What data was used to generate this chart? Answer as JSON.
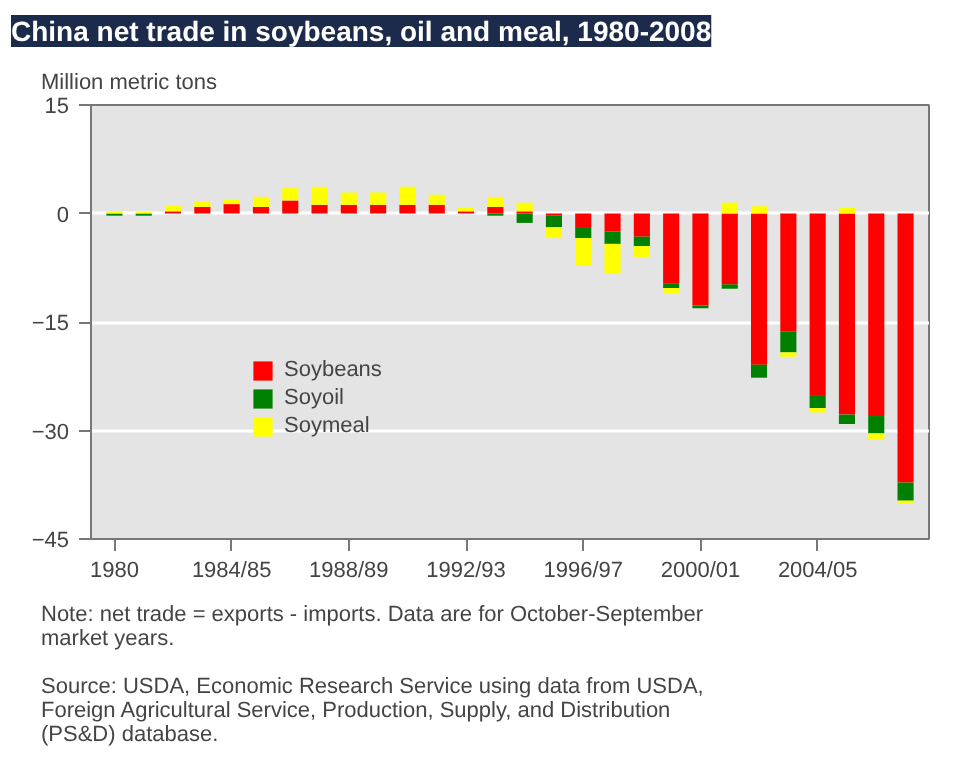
{
  "chart_data": {
    "type": "bar",
    "title": "China net trade in soybeans, oil and meal, 1980-2008",
    "ylabel": "Million metric tons",
    "categories": [
      "1980",
      null,
      null,
      null,
      "1984/85",
      null,
      null,
      null,
      "1988/89",
      null,
      null,
      null,
      "1992/93",
      null,
      null,
      null,
      "1996/97",
      null,
      null,
      null,
      "2000/01",
      null,
      null,
      null,
      "2004/05",
      null,
      null,
      null
    ],
    "series": [
      {
        "name": "Soybeans",
        "color": "#ff0000",
        "values": [
          null,
          null,
          0.3,
          0.9,
          1.3,
          0.9,
          1.8,
          1.2,
          1.2,
          1.2,
          1.2,
          1.2,
          0.3,
          0.9,
          0.3,
          -0.3,
          -2.0,
          -2.5,
          -3.2,
          -9.7,
          -12.7,
          -9.8,
          -20.9,
          -16.3,
          -25.1,
          -27.8,
          -28.0,
          -37.2
        ]
      },
      {
        "name": "Soyoil",
        "color": "#008000",
        "values": [
          -0.3,
          -0.3,
          null,
          null,
          null,
          null,
          null,
          null,
          null,
          null,
          null,
          null,
          null,
          -0.3,
          -1.3,
          -1.6,
          -1.4,
          -1.7,
          -1.3,
          -0.6,
          -0.4,
          -0.6,
          -1.8,
          -2.9,
          -1.8,
          -1.3,
          -2.4,
          -2.5
        ]
      },
      {
        "name": "Soymeal",
        "color": "#ffff00",
        "values": [
          0.3,
          0.2,
          0.8,
          0.8,
          0.7,
          1.4,
          1.7,
          2.5,
          1.7,
          1.7,
          2.5,
          1.4,
          0.5,
          1.4,
          1.2,
          -1.5,
          -3.8,
          -4.1,
          -1.5,
          -0.7,
          null,
          1.5,
          1.0,
          -0.6,
          -0.6,
          0.8,
          -0.9,
          -0.4
        ]
      }
    ],
    "stacked": true,
    "ylim": [
      -45,
      15
    ],
    "yticks": [
      15,
      0,
      -15,
      -30,
      -45
    ],
    "grid": "y",
    "legend": "left",
    "annotations": [
      "Note: net trade = exports - imports. Data are for October-September market years.",
      "Source: USDA, Economic Research Service using data from USDA, Foreign Agricultural Service, Production, Supply, and Distribution (PS&D) database."
    ]
  }
}
